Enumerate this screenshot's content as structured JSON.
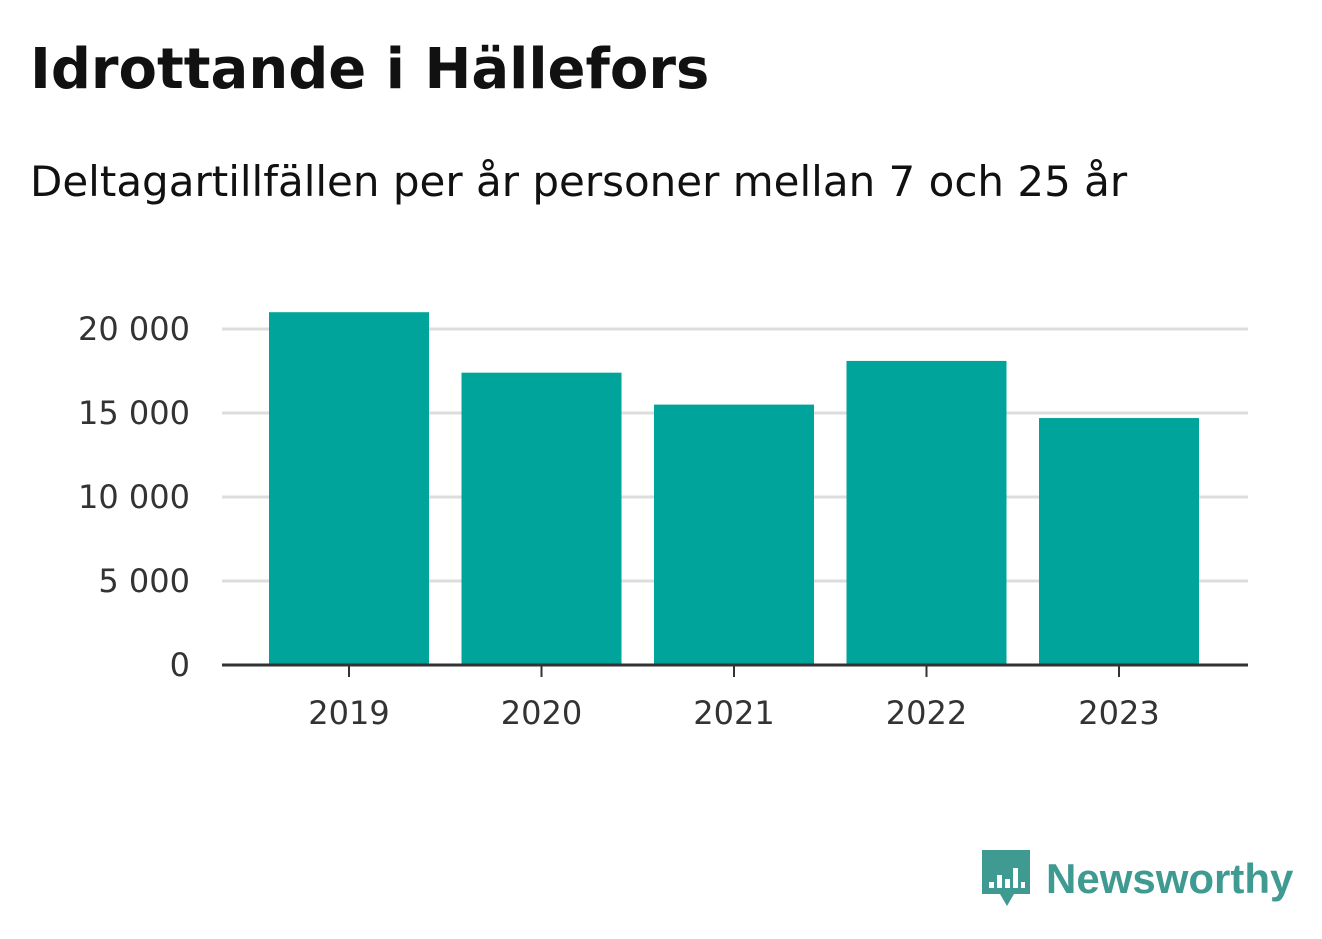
{
  "header": {
    "title": "Idrottande i Hällefors",
    "subtitle": "Deltagartillfällen per år personer mellan 7 och 25 år"
  },
  "brand": {
    "name": "Newsworthy",
    "color": "#3f9a92"
  },
  "colors": {
    "bar": "#00a49a",
    "grid": "#dddddd",
    "axis": "#333333"
  },
  "chart_data": {
    "type": "bar",
    "categories": [
      "2019",
      "2020",
      "2021",
      "2022",
      "2023"
    ],
    "values": [
      21000,
      17400,
      15500,
      18100,
      14700
    ],
    "title": "Idrottande i Hällefors",
    "subtitle": "Deltagartillfällen per år personer mellan 7 och 25 år",
    "xlabel": "",
    "ylabel": "",
    "ylim": [
      0,
      20000
    ],
    "yticks": [
      0,
      5000,
      10000,
      15000,
      20000
    ],
    "ytick_labels": [
      "0",
      "5 000",
      "10 000",
      "15 000",
      "20 000"
    ],
    "grid": true,
    "legend": "none"
  }
}
